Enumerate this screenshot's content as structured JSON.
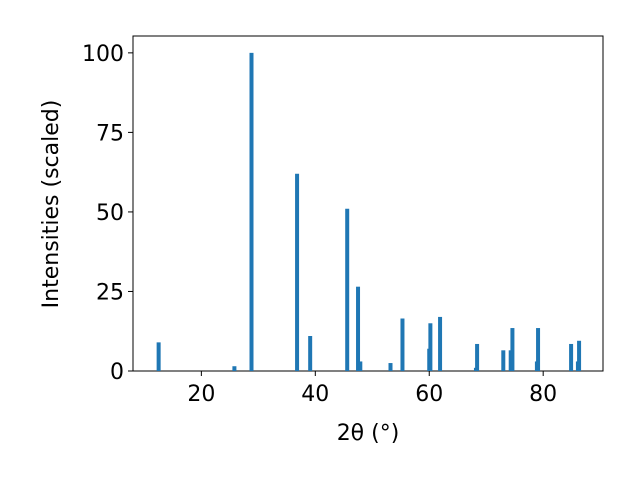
{
  "chart_data": {
    "type": "bar",
    "x_label": "2θ (°)",
    "y_label": "Intensities (scaled)",
    "x": [
      12.5,
      25.8,
      28.8,
      36.8,
      39.1,
      45.6,
      47.5,
      47.9,
      53.2,
      55.3,
      60.0,
      60.2,
      61.9,
      68.2,
      68.4,
      73.0,
      74.3,
      74.6,
      78.9,
      79.1,
      84.9,
      86.1,
      86.3
    ],
    "values": [
      9,
      1.5,
      100,
      62,
      11,
      51,
      26.5,
      3,
      2.5,
      16.5,
      7,
      15,
      17,
      1,
      8.5,
      6.5,
      6.5,
      13.5,
      3,
      13.5,
      8.5,
      3,
      9.5
    ],
    "color": "#1f77b4",
    "xlim": [
      8,
      90.5
    ],
    "xticks": [
      20,
      40,
      60,
      80
    ],
    "ylim": [
      0,
      105.3
    ],
    "yticks": [
      0,
      25,
      50,
      75,
      100
    ]
  }
}
